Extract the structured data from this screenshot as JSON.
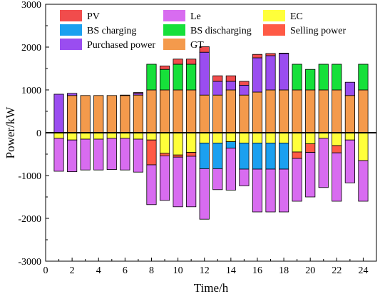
{
  "chart_data": {
    "type": "bar",
    "stacked": true,
    "xlabel": "Time/h",
    "ylabel": "Power/kW",
    "xlim": [
      0,
      25
    ],
    "ylim": [
      -3000,
      3000
    ],
    "xticks": [
      0,
      2,
      4,
      6,
      8,
      10,
      12,
      14,
      16,
      18,
      20,
      22,
      24
    ],
    "yticks": [
      -3000,
      -2000,
      -1000,
      0,
      1000,
      2000,
      3000
    ],
    "zero_line": true,
    "grid": false,
    "legend_position": "top",
    "hours": [
      1,
      2,
      3,
      4,
      5,
      6,
      7,
      8,
      9,
      10,
      11,
      12,
      13,
      14,
      15,
      16,
      17,
      18,
      19,
      20,
      21,
      22,
      23,
      24
    ],
    "series": [
      {
        "name": "GT",
        "color": "#f49a4c",
        "values": [
          0,
          870,
          870,
          870,
          870,
          870,
          880,
          1000,
          1000,
          1000,
          1000,
          880,
          880,
          1000,
          880,
          950,
          1000,
          1000,
          1000,
          1000,
          1000,
          1000,
          870,
          1000
        ]
      },
      {
        "name": "Purchased power",
        "color": "#9a4df0",
        "values": [
          900,
          50,
          0,
          0,
          0,
          10,
          40,
          0,
          0,
          0,
          0,
          1000,
          320,
          200,
          230,
          800,
          800,
          850,
          0,
          0,
          0,
          0,
          310,
          0
        ]
      },
      {
        "name": "BS discharging",
        "color": "#16e03a",
        "values": [
          0,
          0,
          0,
          0,
          0,
          0,
          0,
          600,
          480,
          600,
          600,
          0,
          0,
          0,
          0,
          0,
          0,
          0,
          600,
          480,
          600,
          600,
          0,
          600
        ]
      },
      {
        "name": "PV",
        "color": "#f14c4c",
        "values": [
          0,
          0,
          0,
          0,
          0,
          0,
          20,
          0,
          80,
          120,
          120,
          130,
          130,
          130,
          90,
          80,
          50,
          10,
          0,
          0,
          0,
          0,
          0,
          0
        ]
      },
      {
        "name": "EC",
        "color": "#ffff3a",
        "values": [
          -130,
          -170,
          -150,
          -150,
          -130,
          -130,
          -150,
          -170,
          -480,
          -520,
          -460,
          -240,
          -240,
          -210,
          -240,
          -240,
          -240,
          -240,
          -450,
          -260,
          -130,
          -300,
          -170,
          -650
        ]
      },
      {
        "name": "Selling power",
        "color": "#ff5a45",
        "values": [
          0,
          0,
          0,
          0,
          0,
          0,
          0,
          -580,
          -60,
          -50,
          -90,
          0,
          0,
          0,
          0,
          0,
          0,
          0,
          -150,
          -200,
          0,
          -170,
          0,
          0
        ]
      },
      {
        "name": "BS charging",
        "color": "#1ba0f0",
        "values": [
          0,
          0,
          0,
          0,
          0,
          0,
          0,
          0,
          0,
          0,
          0,
          -600,
          -600,
          -150,
          -610,
          -610,
          -610,
          -610,
          0,
          0,
          0,
          0,
          0,
          0
        ]
      },
      {
        "name": "Le",
        "color": "#d86cf0",
        "values": [
          -770,
          -740,
          -720,
          -720,
          -730,
          -740,
          -770,
          -930,
          -1040,
          -1160,
          -1180,
          -1180,
          -490,
          -980,
          -390,
          -1000,
          -1000,
          -1000,
          -1000,
          -1040,
          -1150,
          -1130,
          -1000,
          -950
        ]
      }
    ],
    "legend": [
      {
        "name": "PV",
        "color": "#f14c4c"
      },
      {
        "name": "Le",
        "color": "#d86cf0"
      },
      {
        "name": "EC",
        "color": "#ffff3a"
      },
      {
        "name": "BS charging",
        "color": "#1ba0f0"
      },
      {
        "name": "BS discharging",
        "color": "#16e03a"
      },
      {
        "name": "Selling power",
        "color": "#ff5a45"
      },
      {
        "name": "Purchased power",
        "color": "#9a4df0"
      },
      {
        "name": "GT",
        "color": "#f49a4c"
      }
    ]
  }
}
